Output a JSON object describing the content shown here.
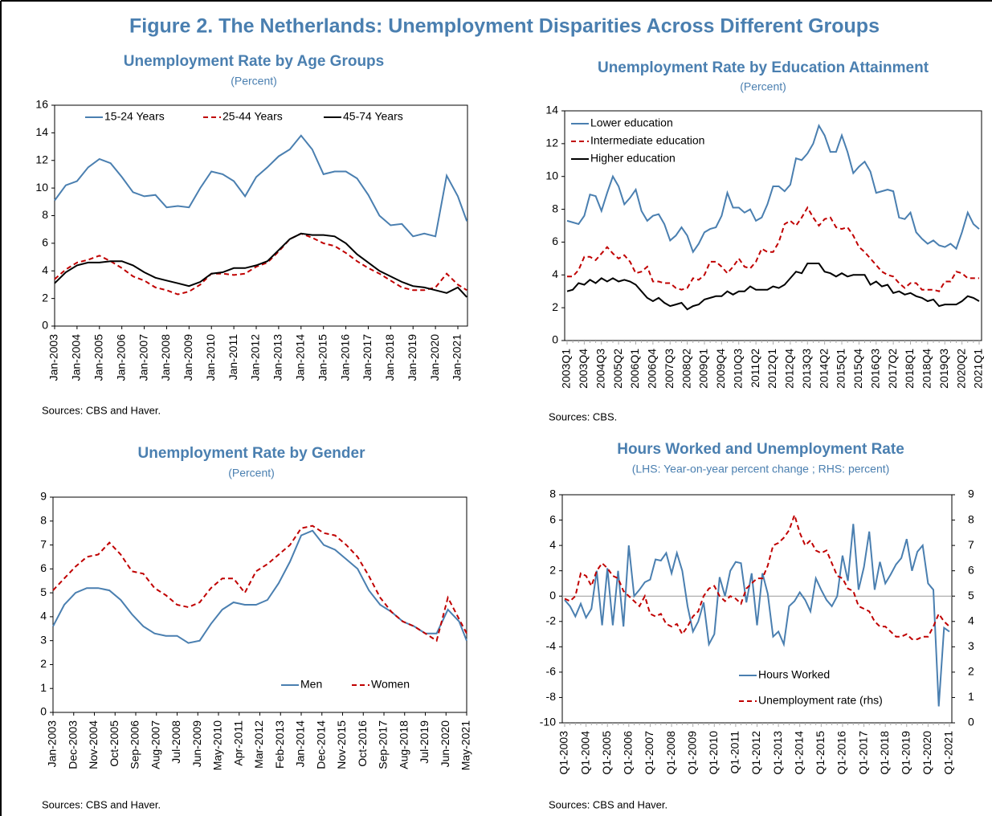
{
  "title": "Figure 2. The Netherlands: Unemployment Disparities Across Different Groups",
  "chart_data": [
    {
      "type": "line",
      "title": "Unemployment Rate by Age Groups",
      "subtitle": "(Percent)",
      "note": "Sources: CBS and Haver.",
      "legend": "top",
      "x": [
        2003,
        2003.5,
        2004,
        2004.5,
        2005,
        2005.5,
        2006,
        2006.5,
        2007,
        2007.5,
        2008,
        2008.5,
        2009,
        2009.5,
        2010,
        2010.5,
        2011,
        2011.5,
        2012,
        2012.5,
        2013,
        2013.5,
        2014,
        2014.5,
        2015,
        2015.5,
        2016,
        2016.5,
        2017,
        2017.5,
        2018,
        2018.5,
        2019,
        2019.5,
        2020,
        2020.5,
        2021,
        2021.4
      ],
      "xlim": [
        2003,
        2021.43
      ],
      "xticks": [
        {
          "value": 2003,
          "label": "Jan-2003"
        },
        {
          "value": 2004,
          "label": "Jan-2004"
        },
        {
          "value": 2005,
          "label": "Jan-2005"
        },
        {
          "value": 2006,
          "label": "Jan-2006"
        },
        {
          "value": 2007,
          "label": "Jan-2007"
        },
        {
          "value": 2008,
          "label": "Jan-2008"
        },
        {
          "value": 2009,
          "label": "Jan-2009"
        },
        {
          "value": 2010,
          "label": "Jan-2010"
        },
        {
          "value": 2011,
          "label": "Jan-2011"
        },
        {
          "value": 2012,
          "label": "Jan-2012"
        },
        {
          "value": 2013,
          "label": "Jan-2013"
        },
        {
          "value": 2014,
          "label": "Jan-2014"
        },
        {
          "value": 2015,
          "label": "Jan-2015"
        },
        {
          "value": 2016,
          "label": "Jan-2016"
        },
        {
          "value": 2017,
          "label": "Jan-2017"
        },
        {
          "value": 2018,
          "label": "Jan-2018"
        },
        {
          "value": 2019,
          "label": "Jan-2019"
        },
        {
          "value": 2020,
          "label": "Jan-2020"
        },
        {
          "value": 2021,
          "label": "Jan-2021"
        }
      ],
      "ylim": [
        0,
        16
      ],
      "yticks": [
        0,
        2,
        4,
        6,
        8,
        10,
        12,
        14,
        16
      ],
      "series": [
        {
          "name": "15-24 Years",
          "color": "#4a7fb0",
          "dashed": false,
          "values": [
            9.1,
            10.2,
            10.5,
            11.5,
            12.1,
            11.8,
            10.8,
            9.7,
            9.4,
            9.5,
            8.6,
            8.7,
            8.6,
            10.0,
            11.2,
            11.0,
            10.5,
            9.4,
            10.8,
            11.5,
            12.3,
            12.8,
            13.8,
            12.8,
            11.0,
            11.2,
            11.2,
            10.7,
            9.5,
            8.0,
            7.3,
            7.4,
            6.5,
            6.7,
            6.5,
            10.9,
            9.4,
            7.6
          ]
        },
        {
          "name": "25-44 Years",
          "color": "#c00000",
          "dashed": true,
          "values": [
            3.4,
            4.1,
            4.6,
            4.8,
            5.1,
            4.7,
            4.2,
            3.6,
            3.3,
            2.8,
            2.6,
            2.3,
            2.5,
            3.0,
            3.8,
            3.8,
            3.7,
            3.8,
            4.3,
            4.6,
            5.4,
            6.3,
            6.7,
            6.4,
            6.0,
            5.8,
            5.3,
            4.7,
            4.2,
            3.8,
            3.3,
            2.8,
            2.6,
            2.6,
            2.8,
            3.8,
            3.0,
            2.6
          ]
        },
        {
          "name": "45-74 Years",
          "color": "#000000",
          "dashed": false,
          "values": [
            3.1,
            3.9,
            4.4,
            4.6,
            4.6,
            4.7,
            4.7,
            4.4,
            3.9,
            3.5,
            3.3,
            3.1,
            2.9,
            3.2,
            3.8,
            3.9,
            4.2,
            4.2,
            4.4,
            4.7,
            5.5,
            6.3,
            6.7,
            6.6,
            6.6,
            6.5,
            6.0,
            5.2,
            4.6,
            4.0,
            3.6,
            3.2,
            2.9,
            2.8,
            2.6,
            2.4,
            2.8,
            2.1
          ]
        }
      ]
    },
    {
      "type": "line",
      "title": "Unemployment Rate by Education Attainment",
      "subtitle": "(Percent)",
      "note": "Sources: CBS.",
      "legend": "top left",
      "categories": [
        "2003Q1",
        null,
        null,
        "2003Q4",
        null,
        null,
        "2004Q3",
        null,
        null,
        "2005Q2",
        null,
        null,
        "2006Q1",
        null,
        null,
        "2006Q4",
        null,
        null,
        "2007Q3",
        null,
        null,
        "2008Q2",
        null,
        null,
        "2009Q1",
        null,
        null,
        "2009Q4",
        null,
        null,
        "2010Q3",
        null,
        null,
        "2011Q2",
        null,
        null,
        "2012Q1",
        null,
        null,
        "2012Q4",
        null,
        null,
        "2013Q3",
        null,
        null,
        "2014Q2",
        null,
        null,
        "2015Q1",
        null,
        null,
        "2015Q4",
        null,
        null,
        "2016Q3",
        null,
        null,
        "2017Q2",
        null,
        null,
        "2018Q1",
        null,
        null,
        "2018Q4",
        null,
        null,
        "2019Q3",
        null,
        null,
        "2020Q2",
        null,
        null,
        "2021Q1"
      ],
      "ylim": [
        0,
        14
      ],
      "yticks": [
        0,
        2,
        4,
        6,
        8,
        10,
        12,
        14
      ],
      "series": [
        {
          "name": "Lower education",
          "color": "#4a7fb0",
          "dashed": false,
          "values": [
            7.3,
            7.2,
            7.1,
            7.6,
            8.9,
            8.8,
            7.9,
            9.0,
            10.0,
            9.4,
            8.3,
            8.7,
            9.2,
            7.9,
            7.3,
            7.6,
            7.7,
            7.1,
            6.1,
            6.4,
            6.9,
            6.4,
            5.4,
            5.9,
            6.6,
            6.8,
            6.9,
            7.6,
            9.0,
            8.1,
            8.1,
            7.8,
            8.0,
            7.3,
            7.5,
            8.3,
            9.4,
            9.4,
            9.1,
            9.5,
            11.1,
            11.0,
            11.4,
            12.0,
            13.1,
            12.5,
            11.5,
            11.5,
            12.5,
            11.5,
            10.2,
            10.6,
            10.9,
            10.3,
            9.0,
            9.1,
            9.2,
            9.1,
            7.5,
            7.4,
            7.8,
            6.6,
            6.2,
            5.9,
            6.1,
            5.8,
            5.7,
            5.9,
            5.6,
            6.6,
            7.8,
            7.1,
            6.8
          ]
        },
        {
          "name": "Intermediate education",
          "color": "#c00000",
          "dashed": true,
          "values": [
            3.9,
            3.9,
            4.3,
            5.1,
            5.1,
            4.9,
            5.3,
            5.7,
            5.3,
            5.0,
            5.2,
            4.8,
            4.1,
            4.2,
            4.5,
            3.6,
            3.6,
            3.5,
            3.5,
            3.2,
            3.1,
            3.2,
            3.8,
            3.7,
            4.0,
            4.8,
            4.8,
            4.5,
            4.1,
            4.5,
            5.0,
            4.5,
            4.4,
            4.8,
            5.6,
            5.4,
            5.4,
            6.0,
            7.1,
            7.3,
            7.0,
            7.5,
            8.1,
            7.5,
            7.0,
            7.4,
            7.5,
            6.9,
            6.8,
            6.9,
            6.4,
            5.7,
            5.4,
            5.0,
            4.6,
            4.2,
            4.0,
            3.9,
            3.5,
            3.2,
            3.5,
            3.5,
            3.1,
            3.1,
            3.1,
            3.0,
            3.6,
            3.6,
            4.2,
            4.1,
            3.8,
            3.8,
            3.8
          ]
        },
        {
          "name": "Higher education",
          "color": "#000000",
          "dashed": false,
          "values": [
            3.0,
            3.1,
            3.5,
            3.4,
            3.7,
            3.5,
            3.8,
            3.6,
            3.8,
            3.6,
            3.7,
            3.6,
            3.4,
            3.0,
            2.6,
            2.4,
            2.6,
            2.3,
            2.1,
            2.2,
            2.3,
            1.9,
            2.1,
            2.2,
            2.5,
            2.6,
            2.7,
            2.7,
            3.0,
            2.8,
            3.0,
            3.0,
            3.3,
            3.1,
            3.1,
            3.1,
            3.3,
            3.2,
            3.4,
            3.8,
            4.2,
            4.1,
            4.7,
            4.7,
            4.7,
            4.2,
            4.1,
            3.9,
            4.1,
            3.9,
            4.0,
            4.0,
            4.0,
            3.4,
            3.6,
            3.3,
            3.4,
            2.9,
            3.0,
            2.8,
            2.9,
            2.7,
            2.6,
            2.4,
            2.5,
            2.1,
            2.2,
            2.2,
            2.2,
            2.4,
            2.7,
            2.6,
            2.4
          ]
        }
      ]
    },
    {
      "type": "line",
      "title": "Unemployment Rate by Gender",
      "subtitle": "(Percent)",
      "note": "Sources: CBS and Haver.",
      "legend": "bottom right",
      "x": [
        2003,
        2003.5,
        2004,
        2004.5,
        2005,
        2005.5,
        2006,
        2006.5,
        2007,
        2007.5,
        2008,
        2008.5,
        2009,
        2009.5,
        2010,
        2010.5,
        2011,
        2011.5,
        2012,
        2012.5,
        2013,
        2013.5,
        2014,
        2014.5,
        2015,
        2015.5,
        2016,
        2016.5,
        2017,
        2017.5,
        2018,
        2018.5,
        2019,
        2019.5,
        2020,
        2020.5,
        2021,
        2021.333
      ],
      "xlim": [
        2003,
        2021.333
      ],
      "xticks": [
        {
          "value": 2003,
          "label": "Jan-2003"
        },
        {
          "value": 2003.917,
          "label": "Dec-2003"
        },
        {
          "value": 2004.833,
          "label": "Nov-2004"
        },
        {
          "value": 2005.75,
          "label": "Oct-2005"
        },
        {
          "value": 2006.667,
          "label": "Sep-2006"
        },
        {
          "value": 2007.583,
          "label": "Aug-2007"
        },
        {
          "value": 2008.5,
          "label": "Jul-2008"
        },
        {
          "value": 2009.417,
          "label": "Jun-2009"
        },
        {
          "value": 2010.333,
          "label": "May-2010"
        },
        {
          "value": 2011.25,
          "label": "Apr-2011"
        },
        {
          "value": 2012.167,
          "label": "Mar-2012"
        },
        {
          "value": 2013.083,
          "label": "Feb-2013"
        },
        {
          "value": 2014,
          "label": "Jan-2014"
        },
        {
          "value": 2014.917,
          "label": "Dec-2014"
        },
        {
          "value": 2015.833,
          "label": "Nov-2015"
        },
        {
          "value": 2016.75,
          "label": "Oct-2016"
        },
        {
          "value": 2017.667,
          "label": "Sep-2017"
        },
        {
          "value": 2018.583,
          "label": "Aug-2018"
        },
        {
          "value": 2019.5,
          "label": "Jul-2019"
        },
        {
          "value": 2020.417,
          "label": "Jun-2020"
        },
        {
          "value": 2021.333,
          "label": "May-2021"
        }
      ],
      "ylim": [
        0,
        9
      ],
      "yticks": [
        0,
        1,
        2,
        3,
        4,
        5,
        6,
        7,
        8,
        9
      ],
      "series": [
        {
          "name": "Men",
          "color": "#4a7fb0",
          "dashed": false,
          "values": [
            3.6,
            4.5,
            5.0,
            5.2,
            5.2,
            5.1,
            4.7,
            4.1,
            3.6,
            3.3,
            3.2,
            3.2,
            2.9,
            3.0,
            3.7,
            4.3,
            4.6,
            4.5,
            4.5,
            4.7,
            5.4,
            6.3,
            7.4,
            7.6,
            7.0,
            6.8,
            6.4,
            6.0,
            5.1,
            4.5,
            4.2,
            3.8,
            3.6,
            3.3,
            3.3,
            4.3,
            3.8,
            3.0
          ]
        },
        {
          "name": "Women",
          "color": "#c00000",
          "dashed": true,
          "values": [
            5.1,
            5.6,
            6.1,
            6.5,
            6.6,
            7.1,
            6.6,
            5.9,
            5.8,
            5.2,
            4.9,
            4.5,
            4.4,
            4.6,
            5.2,
            5.6,
            5.6,
            5.0,
            5.9,
            6.2,
            6.6,
            7.0,
            7.7,
            7.8,
            7.5,
            7.4,
            7.0,
            6.5,
            5.7,
            4.8,
            4.2,
            3.8,
            3.6,
            3.3,
            3.0,
            4.8,
            3.9,
            3.3
          ]
        }
      ]
    },
    {
      "type": "line",
      "title": "Hours Worked and Unemployment Rate",
      "subtitle": "(LHS: Year-on-year percent change ; RHS: percent)",
      "note": "Sources: CBS and Haver.",
      "legend": "bottom",
      "categories": [
        "Q1-2003",
        null,
        null,
        null,
        "Q1-2004",
        null,
        null,
        null,
        "Q1-2005",
        null,
        null,
        null,
        "Q1-2006",
        null,
        null,
        null,
        "Q1-2007",
        null,
        null,
        null,
        "Q1-2008",
        null,
        null,
        null,
        "Q1-2009",
        null,
        null,
        null,
        "Q1-2010",
        null,
        null,
        null,
        "Q1-2011",
        null,
        null,
        null,
        "Q1-2012",
        null,
        null,
        null,
        "Q1-2013",
        null,
        null,
        null,
        "Q1-2014",
        null,
        null,
        null,
        "Q1-2015",
        null,
        null,
        null,
        "Q1-2016",
        null,
        null,
        null,
        "Q1-2017",
        null,
        null,
        null,
        "Q1-2018",
        null,
        null,
        null,
        "Q1-2019",
        null,
        null,
        null,
        "Q1-2020",
        null,
        null,
        null,
        "Q1-2021"
      ],
      "ylim": [
        -10,
        8
      ],
      "yticks": [
        -10,
        -8,
        -6,
        -4,
        -2,
        0,
        2,
        4,
        6,
        8
      ],
      "y2lim": [
        0,
        9
      ],
      "y2ticks": [
        0,
        1,
        2,
        3,
        4,
        5,
        6,
        7,
        8,
        9
      ],
      "series": [
        {
          "name": "Hours Worked",
          "color": "#4a7fb0",
          "dashed": false,
          "values": [
            -0.3,
            -0.8,
            -1.6,
            -0.6,
            -1.7,
            -1.0,
            2.0,
            -2.3,
            2.2,
            -2.3,
            2.0,
            -2.4,
            4.0,
            0.0,
            0.5,
            1.1,
            1.3,
            2.9,
            2.8,
            3.4,
            1.8,
            3.4,
            2.0,
            -0.8,
            -2.8,
            -2.0,
            -0.5,
            -3.8,
            -3.0,
            1.5,
            0.0,
            2.0,
            2.7,
            2.6,
            -0.5,
            1.8,
            -2.3,
            1.8,
            0.2,
            -3.2,
            -2.8,
            -3.8,
            -0.8,
            -0.4,
            0.3,
            -0.3,
            -1.2,
            1.4,
            0.5,
            -0.3,
            -0.8,
            0.0,
            3.2,
            1.2,
            5.7,
            0.5,
            2.3,
            5.1,
            0.5,
            2.7,
            1.0,
            1.7,
            2.5,
            3.0,
            4.5,
            2.0,
            3.5,
            4.0,
            1.0,
            0.5,
            -8.7,
            -2.5,
            -2.8
          ]
        },
        {
          "name": "Unemployment rate (rhs)",
          "color": "#c00000",
          "dashed": true,
          "axis": "y2",
          "values": [
            4.9,
            4.8,
            5.0,
            5.9,
            5.8,
            5.4,
            6.0,
            6.3,
            6.1,
            5.8,
            5.7,
            5.2,
            5.0,
            4.8,
            4.6,
            5.0,
            4.3,
            4.2,
            4.3,
            3.9,
            3.8,
            3.9,
            3.5,
            3.8,
            4.2,
            4.4,
            5.0,
            5.3,
            5.4,
            5.0,
            4.8,
            5.0,
            4.9,
            4.7,
            5.3,
            5.5,
            5.7,
            5.7,
            6.2,
            7.0,
            7.1,
            7.3,
            7.6,
            8.2,
            7.5,
            7.0,
            7.2,
            6.8,
            6.7,
            6.8,
            6.3,
            5.8,
            5.7,
            5.3,
            5.2,
            4.6,
            4.5,
            4.4,
            4.0,
            3.8,
            3.8,
            3.6,
            3.4,
            3.4,
            3.5,
            3.3,
            3.3,
            3.4,
            3.4,
            3.8,
            4.3,
            4.0,
            3.8
          ]
        }
      ]
    }
  ]
}
